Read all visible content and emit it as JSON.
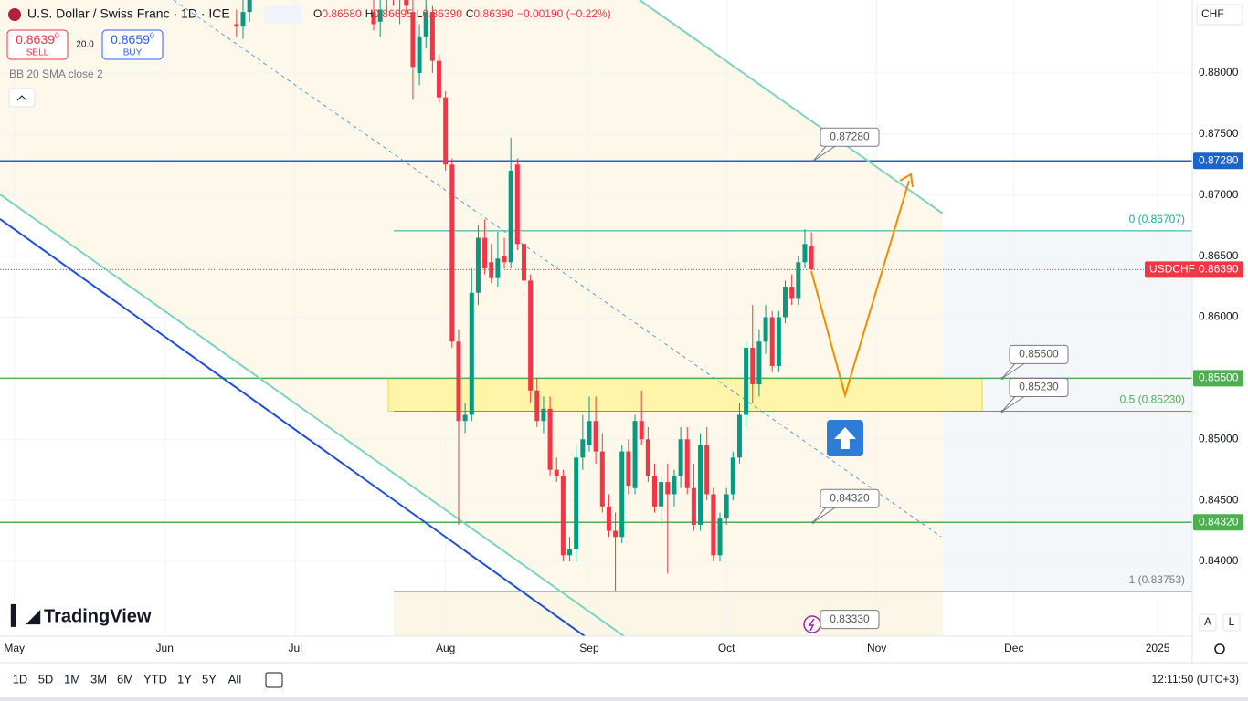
{
  "header": {
    "title": "U.S. Dollar / Swiss Franc · 1D · ICE",
    "ohlc": [
      {
        "key": "O",
        "value": "0.86580"
      },
      {
        "key": "H",
        "value": "0.86695"
      },
      {
        "key": "L",
        "value": "0.86390"
      },
      {
        "key": "C",
        "value": "0.86390"
      }
    ],
    "change": "−0.00190 (−0.22%)"
  },
  "trade": {
    "sell": {
      "price": "0.8639",
      "pip": "0",
      "label": "SELL"
    },
    "spread": "20.0",
    "buy": {
      "price": "0.8659",
      "pip": "0",
      "label": "BUY"
    }
  },
  "indicator": "BB 20 SMA close 2",
  "currency": "CHF",
  "logo": "TradingView",
  "chart_data": {
    "type": "candlestick",
    "x": [
      34,
      35,
      36,
      55,
      56,
      57,
      58,
      59,
      60,
      61,
      62,
      63,
      64,
      65,
      66,
      67,
      68,
      69,
      70,
      71,
      72,
      73,
      74,
      75,
      76,
      77,
      78,
      79,
      80,
      81,
      82,
      83,
      84,
      85,
      86,
      87,
      88,
      89,
      90,
      91,
      92,
      93,
      94,
      95,
      96,
      97,
      98,
      99,
      100,
      101,
      102,
      103,
      104,
      105,
      106,
      107,
      108,
      109,
      110,
      111,
      112,
      113,
      114,
      115,
      116,
      117,
      118,
      119,
      120,
      121,
      122
    ],
    "open": [
      0.884,
      0.8838,
      0.885,
      0.885,
      0.8842,
      0.8865,
      0.887,
      0.886,
      0.8865,
      0.885,
      0.88,
      0.883,
      0.885,
      0.881,
      0.878,
      0.8725,
      0.858,
      0.8515,
      0.852,
      0.862,
      0.8665,
      0.8645,
      0.8632,
      0.865,
      0.8645,
      0.8725,
      0.866,
      0.863,
      0.854,
      0.8515,
      0.8525,
      0.8475,
      0.847,
      0.8405,
      0.841,
      0.8485,
      0.8495,
      0.8515,
      0.849,
      0.8445,
      0.8425,
      0.842,
      0.849,
      0.846,
      0.8515,
      0.85,
      0.847,
      0.8445,
      0.8465,
      0.8455,
      0.847,
      0.85,
      0.846,
      0.843,
      0.8495,
      0.8455,
      0.8405,
      0.8435,
      0.8455,
      0.8485,
      0.852,
      0.8575,
      0.8545,
      0.858,
      0.86,
      0.856,
      0.86,
      0.8625,
      0.8615,
      0.8645,
      0.8658
    ],
    "high": [
      0.8852,
      0.886,
      0.8865,
      0.887,
      0.886,
      0.888,
      0.8885,
      0.8875,
      0.888,
      0.886,
      0.884,
      0.886,
      0.8855,
      0.8815,
      0.8785,
      0.873,
      0.859,
      0.853,
      0.864,
      0.8675,
      0.868,
      0.866,
      0.867,
      0.8665,
      0.8747,
      0.873,
      0.867,
      0.8635,
      0.855,
      0.8535,
      0.8535,
      0.8485,
      0.8475,
      0.842,
      0.8495,
      0.852,
      0.8535,
      0.8535,
      0.8505,
      0.8455,
      0.844,
      0.8495,
      0.85,
      0.852,
      0.854,
      0.851,
      0.848,
      0.847,
      0.848,
      0.8475,
      0.851,
      0.851,
      0.848,
      0.8505,
      0.851,
      0.846,
      0.844,
      0.846,
      0.849,
      0.853,
      0.858,
      0.861,
      0.859,
      0.861,
      0.8605,
      0.8605,
      0.863,
      0.8635,
      0.865,
      0.8672,
      0.86695
    ],
    "low": [
      0.883,
      0.8828,
      0.8842,
      0.8835,
      0.883,
      0.885,
      0.8855,
      0.884,
      0.885,
      0.8778,
      0.879,
      0.882,
      0.88,
      0.8775,
      0.872,
      0.8575,
      0.843,
      0.8505,
      0.8515,
      0.861,
      0.8635,
      0.8628,
      0.8625,
      0.864,
      0.864,
      0.8655,
      0.862,
      0.853,
      0.851,
      0.8505,
      0.847,
      0.8465,
      0.84,
      0.84,
      0.84,
      0.8475,
      0.849,
      0.848,
      0.844,
      0.842,
      0.8375,
      0.8415,
      0.8455,
      0.8455,
      0.8495,
      0.8465,
      0.844,
      0.843,
      0.839,
      0.8445,
      0.846,
      0.8455,
      0.8425,
      0.8425,
      0.845,
      0.84,
      0.84,
      0.843,
      0.845,
      0.848,
      0.851,
      0.853,
      0.8535,
      0.857,
      0.8555,
      0.8555,
      0.8595,
      0.861,
      0.861,
      0.864,
      0.8639
    ],
    "close": [
      0.8838,
      0.885,
      0.886,
      0.884,
      0.8852,
      0.887,
      0.886,
      0.8865,
      0.8855,
      0.8805,
      0.883,
      0.885,
      0.881,
      0.878,
      0.8725,
      0.858,
      0.8515,
      0.852,
      0.862,
      0.8665,
      0.864,
      0.8632,
      0.8648,
      0.8645,
      0.872,
      0.866,
      0.863,
      0.854,
      0.8515,
      0.8525,
      0.8475,
      0.847,
      0.8405,
      0.841,
      0.8485,
      0.85,
      0.8515,
      0.849,
      0.8445,
      0.8425,
      0.842,
      0.849,
      0.8462,
      0.8515,
      0.85,
      0.847,
      0.8445,
      0.8465,
      0.8455,
      0.847,
      0.85,
      0.846,
      0.843,
      0.8495,
      0.8455,
      0.8405,
      0.8435,
      0.8455,
      0.8485,
      0.852,
      0.8575,
      0.8545,
      0.858,
      0.86,
      0.856,
      0.86,
      0.8625,
      0.8615,
      0.8645,
      0.866,
      0.8639
    ],
    "up_color": "#089981",
    "down_color": "#f23645",
    "xlim": [
      -2.2,
      180.3
    ],
    "xticks": [
      {
        "value": 0,
        "label": "May"
      },
      {
        "value": 23,
        "label": "Jun"
      },
      {
        "value": 43,
        "label": "Jul"
      },
      {
        "value": 66,
        "label": "Aug"
      },
      {
        "value": 88,
        "label": "Sep"
      },
      {
        "value": 109,
        "label": "Oct"
      },
      {
        "value": 132,
        "label": "Nov"
      },
      {
        "value": 153,
        "label": "Dec"
      },
      {
        "value": 175,
        "label": "2025"
      }
    ],
    "ylim": [
      0.83387,
      0.88598
    ],
    "yticks": [
      {
        "value": 0.84,
        "label": "0.84000"
      },
      {
        "value": 0.845,
        "label": "0.84500"
      },
      {
        "value": 0.85,
        "label": "0.85000"
      },
      {
        "value": 0.855,
        "label": "0.85500"
      },
      {
        "value": 0.86,
        "label": "0.86000"
      },
      {
        "value": 0.865,
        "label": "0.86500"
      },
      {
        "value": 0.87,
        "label": "0.87000"
      },
      {
        "value": 0.875,
        "label": "0.87500"
      },
      {
        "value": 0.88,
        "label": "0.88000"
      }
    ],
    "grid": true,
    "levels": [
      {
        "value": 0.8728,
        "label": "0.87280",
        "color": "#1e63c8"
      },
      {
        "value": 0.855,
        "label": "0.85500",
        "color": "#4caf50"
      },
      {
        "value": 0.8432,
        "label": "0.84320",
        "color": "#4caf50"
      }
    ],
    "last_price": {
      "symbol": "USDCHF",
      "value": 0.8639,
      "label": "0.86390",
      "color": "#f23645"
    },
    "fib": [
      {
        "value": 0.86707,
        "label": "0 (0.86707)",
        "color": "#26a69a"
      },
      {
        "value": 0.8523,
        "label": "0.5 (0.85230)",
        "color": "#4caf50"
      },
      {
        "value": 0.83753,
        "label": "1 (0.83753)",
        "color": "#787b86"
      }
    ],
    "zone": [
      0.8523,
      0.855
    ],
    "callouts": [
      {
        "value": 0.8728,
        "label": "0.87280"
      },
      {
        "value": 0.855,
        "label": "0.85500"
      },
      {
        "value": 0.8523,
        "label": "0.85230"
      },
      {
        "value": 0.8432,
        "label": "0.84320"
      },
      {
        "value": 0.8333,
        "label": "0.83330"
      }
    ]
  },
  "toolbar": {
    "ranges": [
      "1D",
      "5D",
      "1M",
      "3M",
      "6M",
      "YTD",
      "1Y",
      "5Y",
      "All"
    ],
    "clock": "12:11:50 (UTC+3)",
    "scale_buttons": [
      "A",
      "L"
    ]
  }
}
